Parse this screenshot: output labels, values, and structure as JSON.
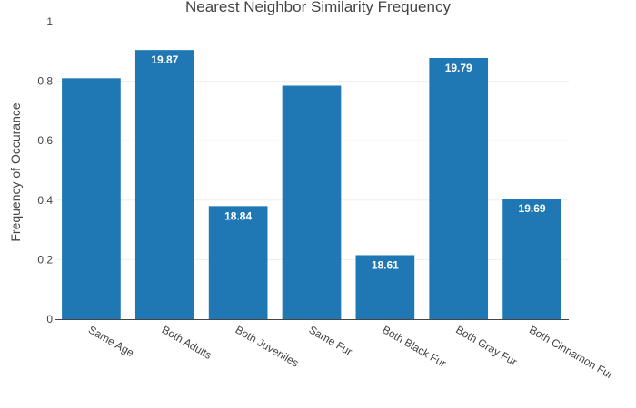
{
  "chart_data": {
    "type": "bar",
    "title": "Nearest Neighbor Similarity Frequency",
    "xlabel": "",
    "ylabel": "Frequency of Occurance",
    "categories": [
      "Same Age",
      "Both Adults",
      "Both Juveniles",
      "Same Fur",
      "Both Black Fur",
      "Both Gray Fur",
      "Both Cinnamon Fur"
    ],
    "values": [
      0.81,
      0.905,
      0.38,
      0.785,
      0.215,
      0.878,
      0.405
    ],
    "data_labels": [
      "",
      "19.87",
      "18.84",
      "",
      "18.61",
      "19.79",
      "19.69"
    ],
    "ylim": [
      0,
      1
    ],
    "yticks": [
      0,
      0.2,
      0.4,
      0.6,
      0.8,
      1
    ],
    "ytick_labels": [
      "0",
      "0.2",
      "0.4",
      "0.6",
      "0.8",
      "1"
    ],
    "grid": true,
    "bar_color": "#1f77b4"
  }
}
